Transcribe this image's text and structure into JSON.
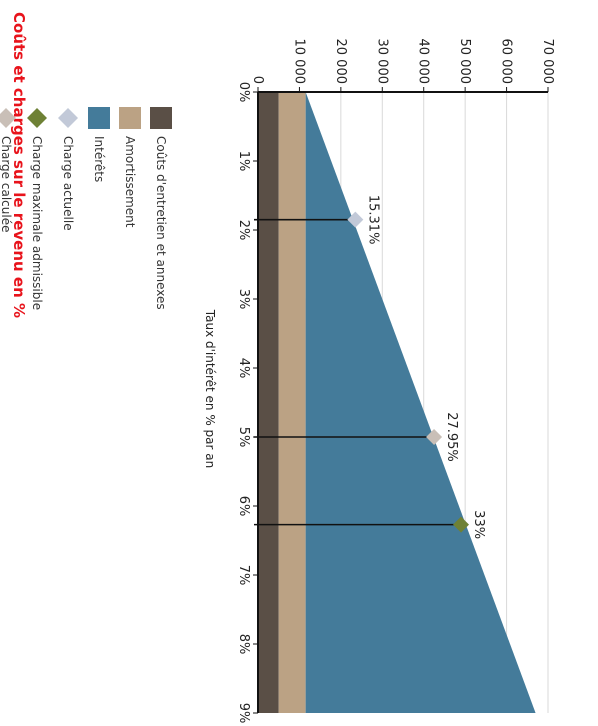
{
  "chart_data": {
    "type": "area",
    "title": "Coûts et charges sur le revenu en %",
    "xlabel": "Taux d'intérêt en % par an",
    "ylabel": "",
    "x_ticks": [
      "0%",
      "1%",
      "2%",
      "3%",
      "4%",
      "5%",
      "6%",
      "7%",
      "8%",
      "9%"
    ],
    "y_ticks": [
      "0",
      "10 000",
      "20 000",
      "30 000",
      "40 000",
      "50 000",
      "60 000",
      "70 000"
    ],
    "xlim": [
      0,
      9
    ],
    "ylim": [
      0,
      70000
    ],
    "grid": true,
    "stacked": true,
    "x": [
      0,
      9
    ],
    "series": [
      {
        "name": "Coûts d'entretien et annexes",
        "color": "#5a4f46",
        "values": [
          5000,
          5000
        ]
      },
      {
        "name": "Amortissement",
        "color": "#bba284",
        "values": [
          6500,
          6500
        ]
      },
      {
        "name": "Intérêts",
        "color": "#447b9a",
        "values": [
          0,
          55500
        ]
      }
    ],
    "markers": [
      {
        "name": "Charge actuelle",
        "color": "#c2c9d8",
        "x": 1.85,
        "y": 23500,
        "label": "15.31%"
      },
      {
        "name": "Charge maximale admissible",
        "color": "#6e8135",
        "x": 6.27,
        "y": 49000,
        "label": "33%"
      },
      {
        "name": "Charge calculée",
        "color": "#c9bfb7",
        "x": 5.0,
        "y": 42500,
        "label": "27.95%"
      }
    ],
    "legend_position": "bottom",
    "legend": [
      {
        "label": "Coûts d'entretien et annexes",
        "color": "#5a4f46",
        "shape": "square"
      },
      {
        "label": "Amortissement",
        "color": "#bba284",
        "shape": "square"
      },
      {
        "label": "Intérêts",
        "color": "#447b9a",
        "shape": "square"
      },
      {
        "label": "Charge actuelle",
        "color": "#c2c9d8",
        "shape": "diamond"
      },
      {
        "label": "Charge maximale admissible",
        "color": "#6e8135",
        "shape": "diamond"
      },
      {
        "label": "Charge calculée",
        "color": "#c9bfb7",
        "shape": "diamond"
      }
    ]
  }
}
